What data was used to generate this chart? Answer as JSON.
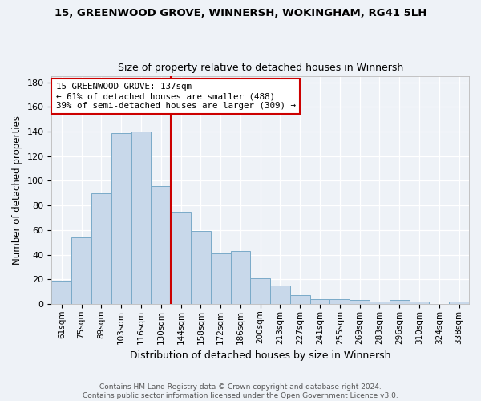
{
  "title": "15, GREENWOOD GROVE, WINNERSH, WOKINGHAM, RG41 5LH",
  "subtitle": "Size of property relative to detached houses in Winnersh",
  "xlabel": "Distribution of detached houses by size in Winnersh",
  "ylabel": "Number of detached properties",
  "bin_labels": [
    "61sqm",
    "75sqm",
    "89sqm",
    "103sqm",
    "116sqm",
    "130sqm",
    "144sqm",
    "158sqm",
    "172sqm",
    "186sqm",
    "200sqm",
    "213sqm",
    "227sqm",
    "241sqm",
    "255sqm",
    "269sqm",
    "283sqm",
    "296sqm",
    "310sqm",
    "324sqm",
    "338sqm"
  ],
  "bar_values": [
    19,
    54,
    90,
    139,
    140,
    96,
    75,
    59,
    41,
    43,
    21,
    15,
    7,
    4,
    4,
    3,
    2,
    3,
    2,
    0,
    2
  ],
  "bar_color": "#c8d8ea",
  "bar_edge_color": "#7aaac8",
  "vline_color": "#cc0000",
  "annotation_text": "15 GREENWOOD GROVE: 137sqm\n← 61% of detached houses are smaller (488)\n39% of semi-detached houses are larger (309) →",
  "annotation_bbox_color": "white",
  "annotation_bbox_edge": "#cc0000",
  "ylim": [
    0,
    185
  ],
  "yticks": [
    0,
    20,
    40,
    60,
    80,
    100,
    120,
    140,
    160,
    180
  ],
  "footer": "Contains HM Land Registry data © Crown copyright and database right 2024.\nContains public sector information licensed under the Open Government Licence v3.0.",
  "bg_color": "#eef2f7",
  "plot_bg_color": "#eef2f7",
  "vline_pos": 5.5
}
